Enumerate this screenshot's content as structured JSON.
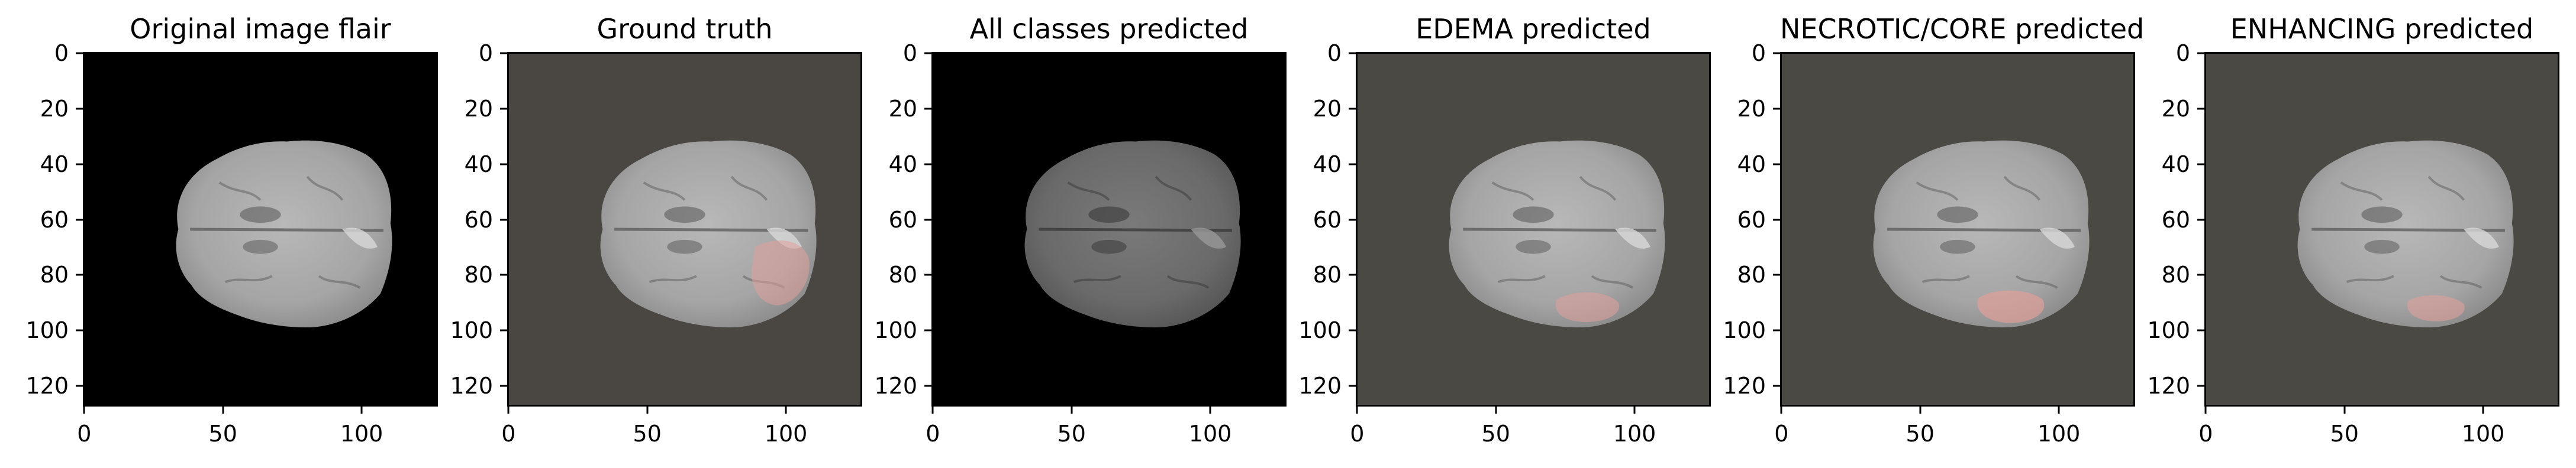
{
  "figure": {
    "panels": [
      {
        "title": "Original image flair",
        "background": "#000000",
        "brain_tone": "light",
        "overlay": "none"
      },
      {
        "title": "Ground truth",
        "background": "#4a4642",
        "brain_tone": "light",
        "overlay": "gt"
      },
      {
        "title": "All classes predicted",
        "background": "#000000",
        "brain_tone": "dark",
        "overlay": "none"
      },
      {
        "title": "EDEMA predicted",
        "background": "#4a4944",
        "brain_tone": "light",
        "overlay": "edema"
      },
      {
        "title": "NECROTIC/CORE predicted",
        "background": "#4a4944",
        "brain_tone": "light",
        "overlay": "core"
      },
      {
        "title": "ENHANCING predicted",
        "background": "#4a4944",
        "brain_tone": "light",
        "overlay": "enhancing"
      }
    ],
    "y_ticks": [
      "0",
      "20",
      "40",
      "60",
      "80",
      "100",
      "120"
    ],
    "x_ticks": [
      "0",
      "50",
      "100"
    ],
    "y_tick_values": [
      0,
      20,
      40,
      60,
      80,
      100,
      120
    ],
    "x_tick_values": [
      0,
      50,
      100
    ],
    "image_extent": [
      -0.5,
      127.5
    ],
    "overlay_color": "#e0a09a"
  }
}
